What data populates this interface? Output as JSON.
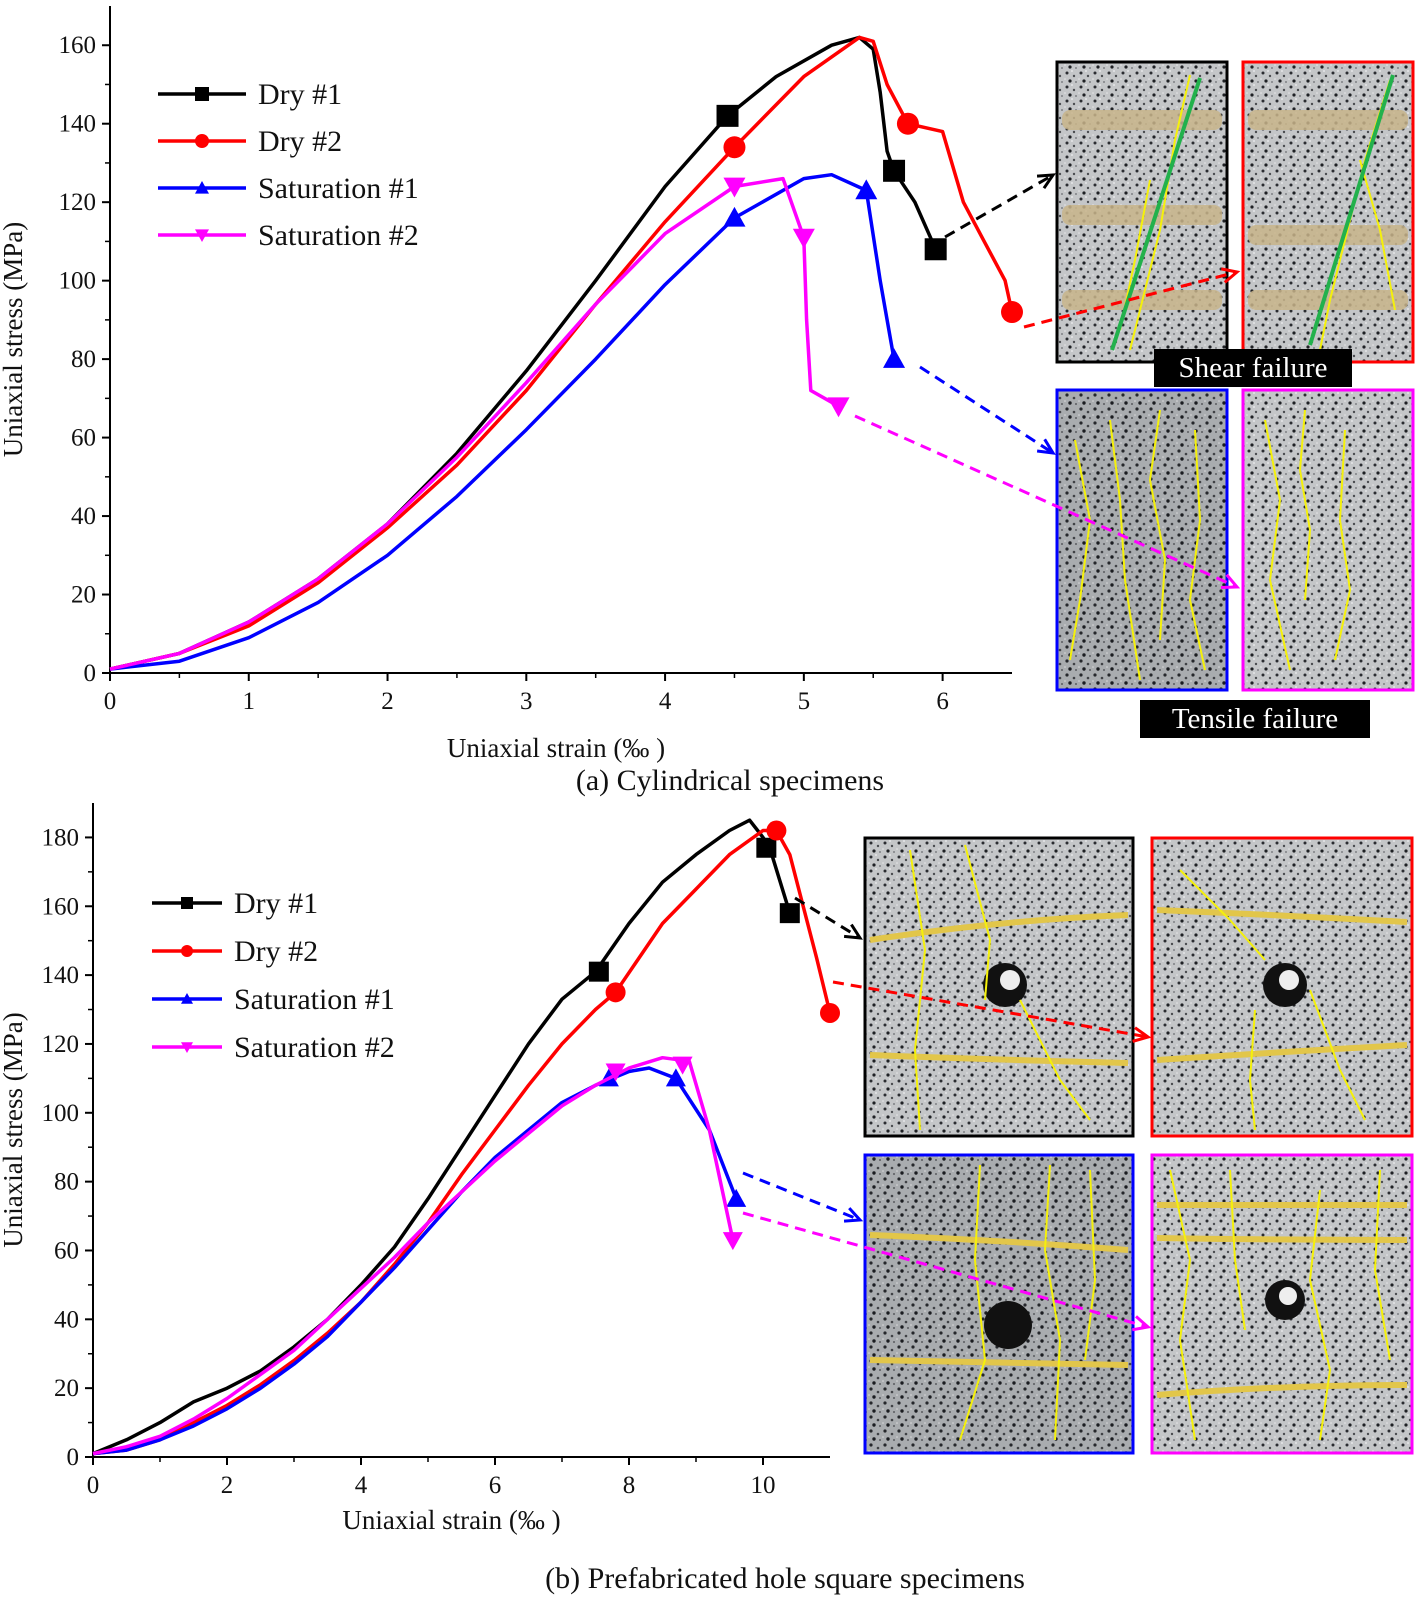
{
  "colors": {
    "dry1": "#000000",
    "dry2": "#ff0000",
    "sat1": "#0000ff",
    "sat2": "#ff00ff",
    "crack": "#f5f10a",
    "shear_plane": "#22b14c",
    "label_bg": "#000000"
  },
  "panels": [
    {
      "caption": "(a) Cylindrical specimens",
      "annotations": [
        "Shear failure",
        "Tensile failure"
      ],
      "specimen_photos": [
        "dry-1-specimen-photo",
        "dry-2-specimen-photo",
        "saturation-1-specimen-photo",
        "saturation-2-specimen-photo"
      ]
    },
    {
      "caption": "(b) Prefabricated hole square specimens",
      "annotations": [],
      "specimen_photos": [
        "dry-1-specimen-photo",
        "dry-2-specimen-photo",
        "saturation-1-specimen-photo",
        "saturation-2-specimen-photo"
      ]
    }
  ],
  "chart_data": [
    {
      "type": "line",
      "title": "(a) Cylindrical specimens",
      "xlabel": "Uniaxial strain (‰ )",
      "ylabel": "Uniaxial stress (MPa)",
      "xlim": [
        0,
        6.5
      ],
      "ylim": [
        0,
        170
      ],
      "xticks": [
        0,
        1,
        2,
        3,
        4,
        5,
        6
      ],
      "yticks": [
        0,
        20,
        40,
        60,
        80,
        100,
        120,
        140,
        160
      ],
      "grid": false,
      "legend_position": "top-left",
      "series": [
        {
          "name": "Dry #1",
          "color_key": "dry1",
          "marker": "square",
          "x": [
            0,
            0.5,
            1,
            1.5,
            2,
            2.5,
            3,
            3.5,
            4,
            4.45,
            4.8,
            5.2,
            5.4,
            5.5,
            5.55,
            5.6,
            5.65,
            5.8,
            5.95
          ],
          "y": [
            1,
            5,
            13,
            24,
            38,
            56,
            77,
            100,
            124,
            142,
            152,
            160,
            162,
            159,
            148,
            133,
            128,
            120,
            108
          ],
          "marker_points": [
            [
              4.45,
              142
            ],
            [
              5.65,
              128
            ],
            [
              5.95,
              108
            ]
          ]
        },
        {
          "name": "Dry #2",
          "color_key": "dry2",
          "marker": "circle",
          "x": [
            0,
            0.5,
            1,
            1.5,
            2,
            2.5,
            3,
            3.5,
            4,
            4.5,
            5,
            5.4,
            5.5,
            5.6,
            5.75,
            6.0,
            6.15,
            6.3,
            6.45,
            6.5
          ],
          "y": [
            1,
            5,
            12,
            23,
            37,
            53,
            72,
            94,
            115,
            134,
            152,
            162,
            161,
            150,
            140,
            138,
            120,
            110,
            100,
            92
          ],
          "marker_points": [
            [
              4.5,
              134
            ],
            [
              5.75,
              140
            ],
            [
              6.5,
              92
            ]
          ]
        },
        {
          "name": "Saturation #1",
          "color_key": "sat1",
          "marker": "triangle-up",
          "x": [
            0,
            0.5,
            1,
            1.5,
            2,
            2.5,
            3,
            3.5,
            4,
            4.5,
            5,
            5.2,
            5.45,
            5.55,
            5.65
          ],
          "y": [
            1,
            3,
            9,
            18,
            30,
            45,
            62,
            80,
            99,
            116,
            126,
            127,
            123,
            100,
            80
          ],
          "marker_points": [
            [
              4.5,
              116
            ],
            [
              5.45,
              123
            ],
            [
              5.65,
              80
            ]
          ]
        },
        {
          "name": "Saturation #2",
          "color_key": "sat2",
          "marker": "triangle-down",
          "x": [
            0,
            0.5,
            1,
            1.5,
            2,
            2.5,
            3,
            3.5,
            4,
            4.5,
            4.85,
            5.0,
            5.02,
            5.05,
            5.25
          ],
          "y": [
            1,
            5,
            13,
            24,
            38,
            55,
            74,
            94,
            112,
            124,
            126,
            111,
            90,
            72,
            68
          ],
          "marker_points": [
            [
              4.5,
              124
            ],
            [
              5.0,
              111
            ],
            [
              5.25,
              68
            ]
          ]
        }
      ]
    },
    {
      "type": "line",
      "title": "(b) Prefabricated hole square specimens",
      "xlabel": "Uniaxial strain (‰ )",
      "ylabel": "Uniaxial stress (MPa)",
      "xlim": [
        0,
        11
      ],
      "ylim": [
        0,
        190
      ],
      "xticks": [
        0,
        2,
        4,
        6,
        8,
        10
      ],
      "yticks": [
        0,
        20,
        40,
        60,
        80,
        100,
        120,
        140,
        160,
        180
      ],
      "grid": false,
      "legend_position": "top-left",
      "series": [
        {
          "name": "Dry #1",
          "color_key": "dry1",
          "marker": "square",
          "x": [
            0,
            0.5,
            1,
            1.5,
            2,
            2.5,
            3,
            3.5,
            4,
            4.5,
            5,
            5.5,
            6,
            6.5,
            7,
            7.5,
            8,
            8.5,
            9,
            9.5,
            9.8,
            10.0,
            10.1,
            10.4
          ],
          "y": [
            1,
            5,
            10,
            16,
            20,
            25,
            32,
            40,
            50,
            61,
            75,
            90,
            105,
            120,
            133,
            141,
            155,
            167,
            175,
            182,
            185,
            180,
            177,
            158
          ],
          "marker_points": [
            [
              7.55,
              141
            ],
            [
              10.05,
              177
            ],
            [
              10.4,
              158
            ]
          ]
        },
        {
          "name": "Dry #2",
          "color_key": "dry2",
          "marker": "circle",
          "x": [
            0,
            0.5,
            1,
            1.5,
            2,
            2.5,
            3,
            3.5,
            4,
            4.5,
            5,
            5.5,
            6,
            6.5,
            7,
            7.5,
            7.8,
            8.5,
            9,
            9.5,
            10,
            10.2,
            10.4,
            10.6,
            10.8,
            11.0
          ],
          "y": [
            1,
            2,
            5,
            10,
            15,
            21,
            28,
            36,
            45,
            56,
            68,
            82,
            95,
            108,
            120,
            130,
            135,
            155,
            165,
            175,
            182,
            182,
            175,
            160,
            145,
            129
          ],
          "marker_points": [
            [
              7.8,
              135
            ],
            [
              10.2,
              182
            ],
            [
              11.0,
              129
            ]
          ]
        },
        {
          "name": "Saturation #1",
          "color_key": "sat1",
          "marker": "triangle-up",
          "x": [
            0,
            0.5,
            1,
            1.5,
            2,
            2.5,
            3,
            3.5,
            4,
            4.5,
            5,
            5.5,
            6,
            6.5,
            7,
            7.5,
            8,
            8.3,
            8.7,
            9.2,
            9.6
          ],
          "y": [
            1,
            2,
            5,
            9,
            14,
            20,
            27,
            35,
            45,
            55,
            66,
            77,
            87,
            95,
            103,
            108,
            112,
            113,
            110,
            95,
            75
          ],
          "marker_points": [
            [
              7.7,
              110
            ],
            [
              8.7,
              110
            ],
            [
              9.6,
              75
            ]
          ]
        },
        {
          "name": "Saturation #2",
          "color_key": "sat2",
          "marker": "triangle-down",
          "x": [
            0,
            0.5,
            1,
            1.5,
            2,
            2.5,
            3,
            3.5,
            4,
            4.5,
            5,
            5.5,
            6,
            6.5,
            7,
            7.5,
            8,
            8.5,
            8.9,
            9.2,
            9.55
          ],
          "y": [
            1,
            3,
            6,
            11,
            17,
            24,
            31,
            40,
            49,
            58,
            68,
            77,
            86,
            94,
            102,
            108,
            113,
            116,
            115,
            95,
            63
          ],
          "marker_points": [
            [
              7.8,
              112
            ],
            [
              8.8,
              114
            ],
            [
              9.55,
              63
            ]
          ]
        }
      ]
    }
  ]
}
